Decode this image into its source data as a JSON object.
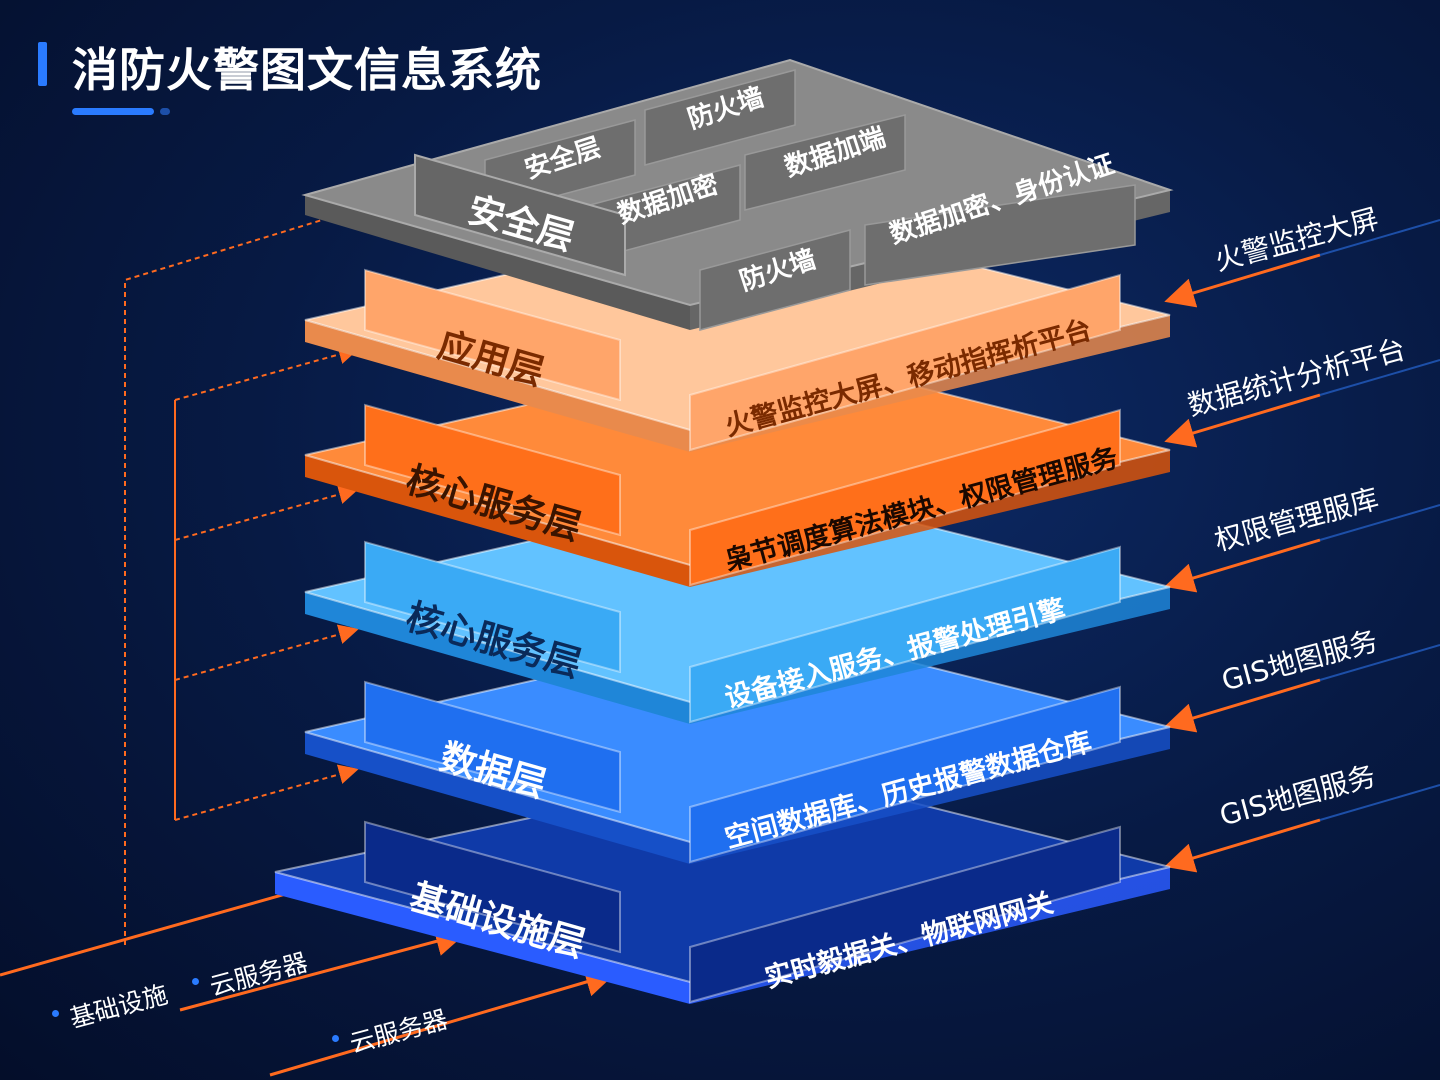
{
  "title": "消防火警图文信息系统",
  "colors": {
    "accent": "#2a7bff",
    "arrow": "#ff6a1f",
    "security": "#7a7a7a",
    "application": "#ffa56a",
    "core_orange": "#ff6f1a",
    "core_blue": "#3aaaf5",
    "data": "#1f6ff0",
    "infra": "#0a2a8a"
  },
  "security": {
    "tab": "安全层",
    "cells": [
      "安全层",
      "防火墙",
      "数据加密",
      "数据加端",
      "防火墙",
      "数据加密、身份认证"
    ]
  },
  "layers": [
    {
      "tab": "应用层",
      "desc": "火警监控大屏、移动指挥析平台"
    },
    {
      "tab": "核心服务层",
      "desc": "枭节调度算法模块、权限管理服务"
    },
    {
      "tab": "核心服务层",
      "desc": "设备接入服务、报警处理引擎"
    },
    {
      "tab": "数据层",
      "desc": "空间数据库、历史报警数据仓库"
    },
    {
      "tab": "基础设施层",
      "desc": "实时毅据关、物联网网关"
    }
  ],
  "side_labels": [
    "火警监控大屏",
    "数据统计分析平台",
    "权限管理服库",
    "GIS地图服务",
    "GIS地图服务"
  ],
  "bottom_labels": [
    "基础设施",
    "云服务器",
    "云服务器"
  ]
}
